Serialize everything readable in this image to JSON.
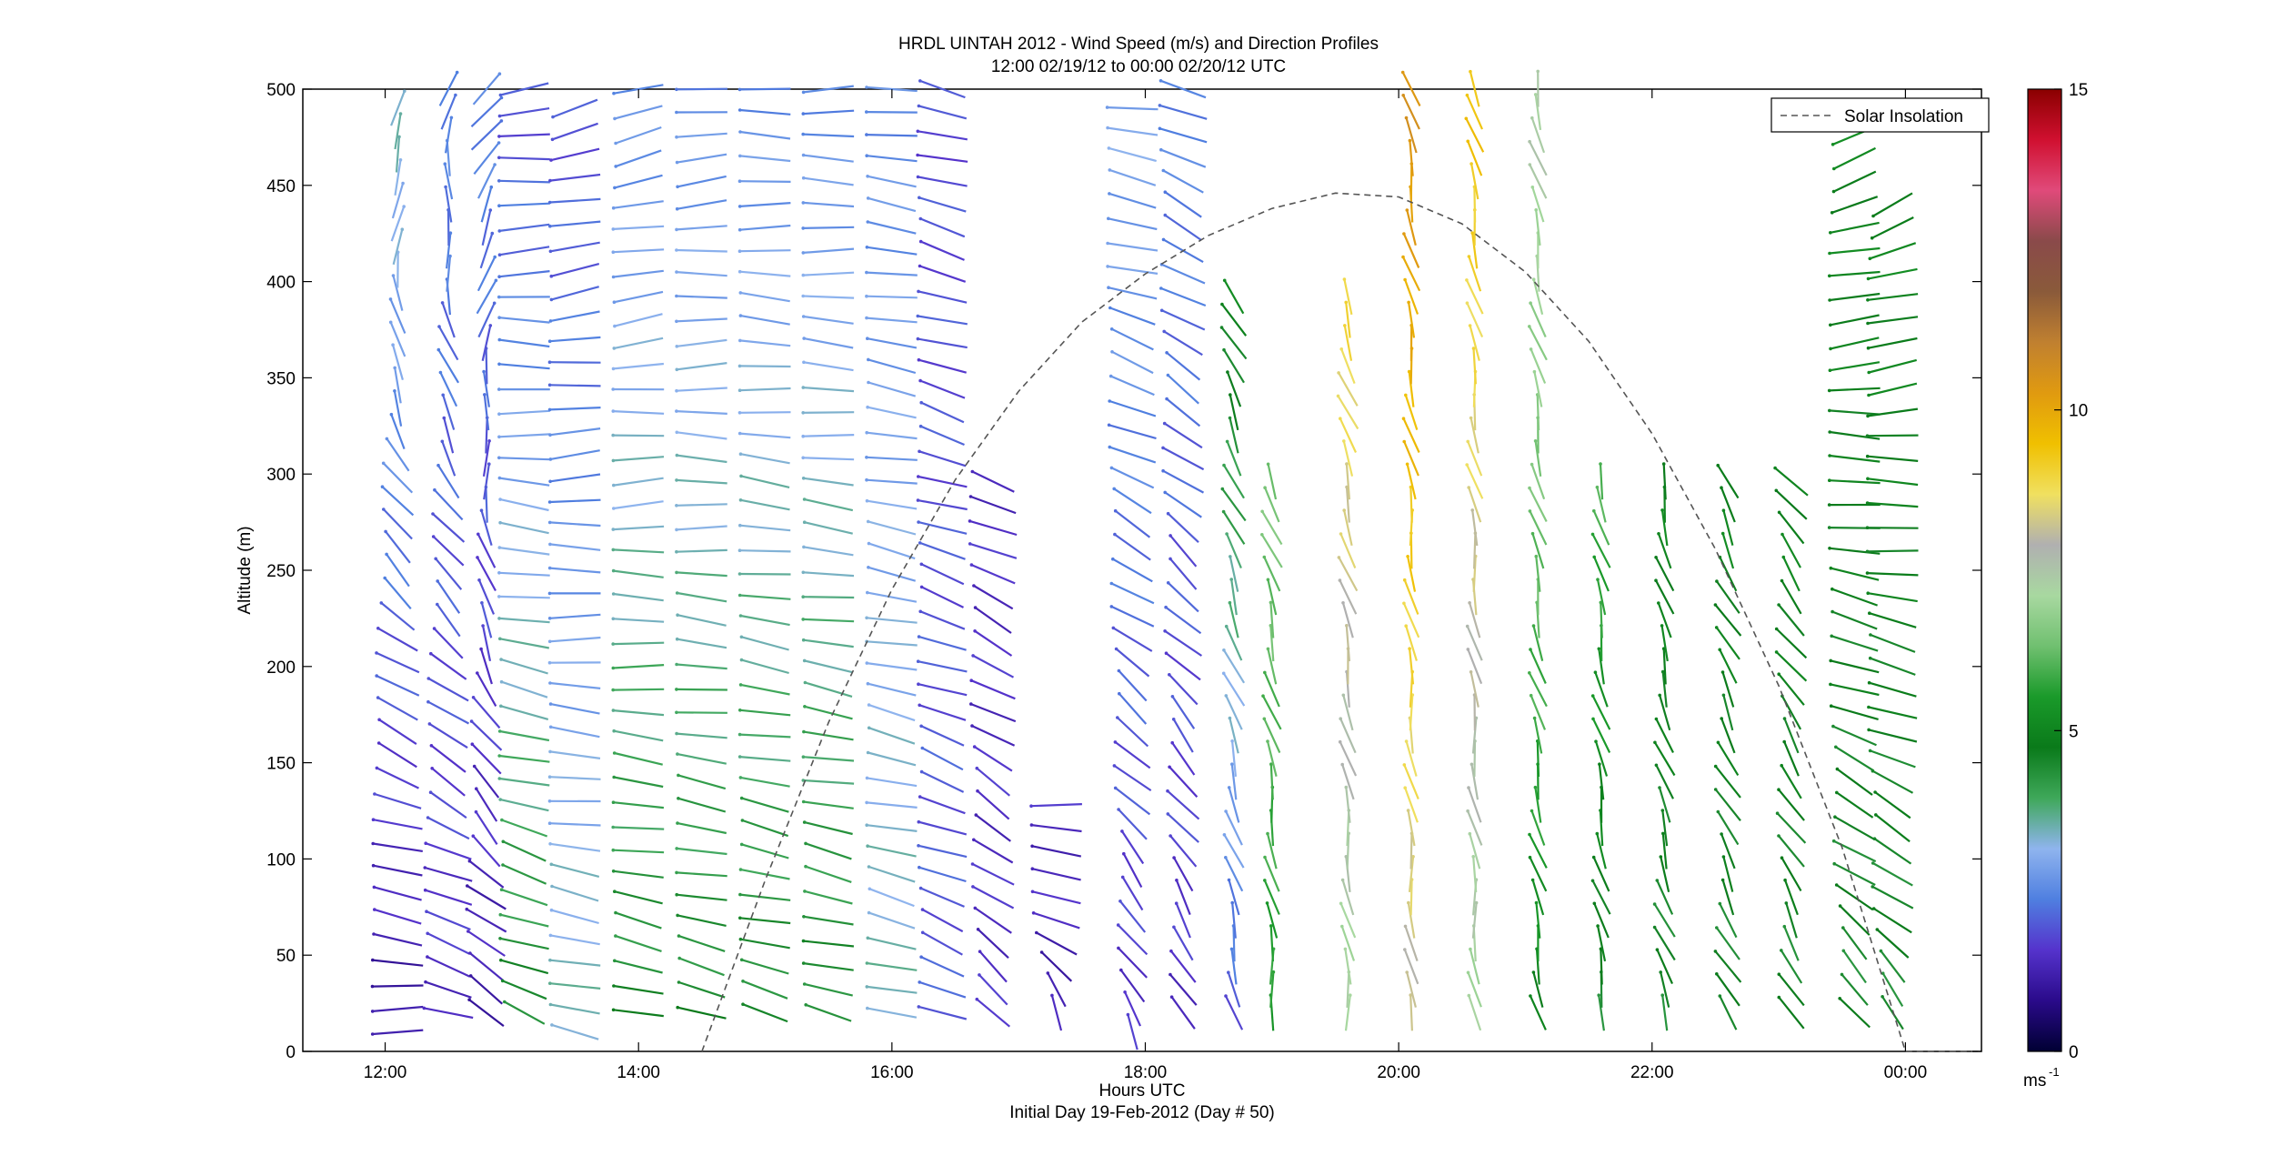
{
  "chart_data": {
    "type": "scatter",
    "title": "HRDL UINTAH 2012 - Wind Speed (m/s) and Direction Profiles",
    "subtitle": "12:00 02/19/12 to 00:00 02/20/12  UTC",
    "xlabel": "Hours UTC",
    "xlabel_note": "Initial Day 19-Feb-2012 (Day # 50)",
    "ylabel": "Altitude (m)",
    "x_ticks": [
      "12:00",
      "14:00",
      "16:00",
      "18:00",
      "20:00",
      "22:00",
      "00:00"
    ],
    "x_tick_hours": [
      12,
      14,
      16,
      18,
      20,
      22,
      24
    ],
    "xlim": [
      11.35,
      24.6
    ],
    "y_ticks": [
      0,
      50,
      100,
      150,
      200,
      250,
      300,
      350,
      400,
      450,
      500
    ],
    "ylim": [
      0,
      500
    ],
    "grid": false,
    "legend": {
      "position": "top-right",
      "entries": [
        "Solar Insolation"
      ]
    },
    "colorbar": {
      "label": "ms",
      "label_exponent": "-1",
      "range": [
        0,
        15
      ],
      "ticks": [
        0,
        5,
        10,
        15
      ],
      "colormap": [
        "#000033",
        "#2a0a8a",
        "#5533cc",
        "#4f7fe0",
        "#8fb4ee",
        "#3fa85a",
        "#0a7a1a",
        "#1a9a2a",
        "#70c070",
        "#a8d8a0",
        "#b0b0b0",
        "#f0e060",
        "#f0c000",
        "#e09a10",
        "#c08030",
        "#8a5a3a",
        "#8a4a4a",
        "#e04a7a",
        "#d01030",
        "#8a0000"
      ]
    },
    "solar_insolation": {
      "name": "Solar Insolation",
      "x_hours": [
        14.5,
        15.0,
        15.5,
        16.0,
        16.5,
        17.0,
        17.5,
        18.0,
        18.5,
        19.0,
        19.5,
        20.0,
        20.5,
        21.0,
        21.5,
        22.0,
        22.5,
        23.0,
        23.5,
        24.0,
        24.6
      ],
      "y_altitude": [
        0,
        89,
        171,
        240,
        297,
        343,
        379,
        404,
        424,
        438,
        446,
        444,
        430,
        405,
        369,
        321,
        261,
        190,
        106,
        0,
        0
      ]
    },
    "wind_profiles": [
      {
        "hour": 12.1,
        "alt_min": 10,
        "alt_max": 500,
        "speed_low": 1,
        "speed_high": 3.5,
        "dir_low": 270,
        "dir_high": 160
      },
      {
        "hour": 12.5,
        "alt_min": 20,
        "alt_max": 500,
        "speed_low": 1.5,
        "speed_high": 2.5,
        "dir_low": 250,
        "dir_high": 170
      },
      {
        "hour": 12.8,
        "alt_min": 20,
        "alt_max": 500,
        "speed_low": 1.2,
        "speed_high": 2.5,
        "dir_low": 230,
        "dir_high": 150
      },
      {
        "hour": 13.1,
        "alt_min": 20,
        "alt_max": 500,
        "speed_low": 4.5,
        "speed_high": 1.8,
        "dir_low": 240,
        "dir_high": 280
      },
      {
        "hour": 13.5,
        "alt_min": 10,
        "alt_max": 500,
        "speed_low": 3.5,
        "speed_high": 1.8,
        "dir_low": 250,
        "dir_high": 290
      },
      {
        "hour": 14.0,
        "alt_min": 20,
        "alt_max": 500,
        "speed_low": 4.5,
        "speed_high": 2.5,
        "dir_low": 250,
        "dir_high": 290
      },
      {
        "hour": 14.5,
        "alt_min": 20,
        "alt_max": 500,
        "speed_low": 4.5,
        "speed_high": 2.5,
        "dir_low": 250,
        "dir_high": 280
      },
      {
        "hour": 15.0,
        "alt_min": 20,
        "alt_max": 500,
        "speed_low": 4.5,
        "speed_high": 2.5,
        "dir_low": 250,
        "dir_high": 270
      },
      {
        "hour": 15.5,
        "alt_min": 20,
        "alt_max": 500,
        "speed_low": 4.5,
        "speed_high": 2.5,
        "dir_low": 250,
        "dir_high": 270
      },
      {
        "hour": 16.0,
        "alt_min": 20,
        "alt_max": 500,
        "speed_low": 3.5,
        "speed_high": 2.5,
        "dir_low": 250,
        "dir_high": 260
      },
      {
        "hour": 16.4,
        "alt_min": 20,
        "alt_max": 500,
        "speed_low": 2.0,
        "speed_high": 1.8,
        "dir_low": 240,
        "dir_high": 250
      },
      {
        "hour": 16.8,
        "alt_min": 20,
        "alt_max": 300,
        "speed_low": 1.5,
        "speed_high": 1.5,
        "dir_low": 220,
        "dir_high": 240
      },
      {
        "hour": 17.3,
        "alt_min": 20,
        "alt_max": 130,
        "speed_low": 1.2,
        "speed_high": 1.5,
        "dir_low": 200,
        "dir_high": 280
      },
      {
        "hour": 17.9,
        "alt_min": 10,
        "alt_max": 500,
        "speed_low": 1.5,
        "speed_high": 3.0,
        "dir_low": 200,
        "dir_high": 260
      },
      {
        "hour": 18.3,
        "alt_min": 20,
        "alt_max": 500,
        "speed_low": 1.5,
        "speed_high": 2.5,
        "dir_low": 200,
        "dir_high": 240
      },
      {
        "hour": 18.7,
        "alt_min": 20,
        "alt_max": 400,
        "speed_low": 2.0,
        "speed_high": 5.0,
        "dir_low": 190,
        "dir_high": 200
      },
      {
        "hour": 19.0,
        "alt_min": 20,
        "alt_max": 300,
        "speed_low": 5.5,
        "speed_high": 6.5,
        "dir_low": 185,
        "dir_high": 195
      },
      {
        "hour": 19.6,
        "alt_min": 20,
        "alt_max": 400,
        "speed_low": 7.0,
        "speed_high": 9.0,
        "dir_low": 185,
        "dir_high": 195
      },
      {
        "hour": 20.1,
        "alt_min": 20,
        "alt_max": 500,
        "speed_low": 8.0,
        "speed_high": 10.5,
        "dir_low": 185,
        "dir_high": 190
      },
      {
        "hour": 20.6,
        "alt_min": 20,
        "alt_max": 500,
        "speed_low": 7.0,
        "speed_high": 9.5,
        "dir_low": 185,
        "dir_high": 190
      },
      {
        "hour": 21.1,
        "alt_min": 20,
        "alt_max": 500,
        "speed_low": 5.0,
        "speed_high": 7.5,
        "dir_low": 190,
        "dir_high": 190
      },
      {
        "hour": 21.6,
        "alt_min": 20,
        "alt_max": 300,
        "speed_low": 4.5,
        "speed_high": 6.0,
        "dir_low": 190,
        "dir_high": 190
      },
      {
        "hour": 22.1,
        "alt_min": 20,
        "alt_max": 300,
        "speed_low": 4.5,
        "speed_high": 5.0,
        "dir_low": 195,
        "dir_high": 190
      },
      {
        "hour": 22.6,
        "alt_min": 20,
        "alt_max": 300,
        "speed_low": 4.5,
        "speed_high": 5.0,
        "dir_low": 200,
        "dir_high": 200
      },
      {
        "hour": 23.1,
        "alt_min": 20,
        "alt_max": 300,
        "speed_low": 4.5,
        "speed_high": 5.0,
        "dir_low": 200,
        "dir_high": 210
      },
      {
        "hour": 23.6,
        "alt_min": 20,
        "alt_max": 480,
        "speed_low": 4.5,
        "speed_high": 5.0,
        "dir_low": 210,
        "dir_high": 300
      },
      {
        "hour": 23.9,
        "alt_min": 20,
        "alt_max": 440,
        "speed_low": 4.5,
        "speed_high": 5.0,
        "dir_low": 210,
        "dir_high": 300
      }
    ]
  }
}
